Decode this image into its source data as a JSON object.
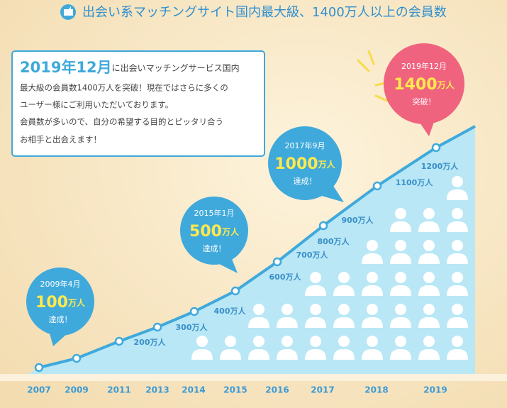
{
  "header": {
    "title": "出会い系マッチングサイト国内最大級、1400万人以上の会員数"
  },
  "info_box": {
    "highlight": "2019年12月",
    "lines": [
      "に出会いマッチングサービス国内",
      "最大級の会員数1400万人を突破！現在ではさらに多くの",
      "ユーザー様にご利用いただいております。",
      "会員数が多いので、自分の希望する目的とピッタリ合う",
      "お相手と出会えます！"
    ]
  },
  "callouts": [
    {
      "date": "2009年4月",
      "number": "100",
      "unit": "万人",
      "note": "達成！"
    },
    {
      "date": "2015年1月",
      "number": "500",
      "unit": "万人",
      "note": "達成！"
    },
    {
      "date": "2017年9月",
      "number": "1000",
      "unit": "万人",
      "note": "達成！"
    },
    {
      "date": "2019年12月",
      "number": "1400",
      "unit": "万人",
      "note": "突破！"
    }
  ],
  "point_labels": [
    "200万人",
    "300万人",
    "400万人",
    "600万人",
    "700万人",
    "800万人",
    "900万人",
    "1100万人",
    "1200万人"
  ],
  "years": [
    "2007",
    "2009",
    "2011",
    "2013",
    "2014",
    "2015",
    "2016",
    "2017",
    "2018",
    "2019"
  ]
}
